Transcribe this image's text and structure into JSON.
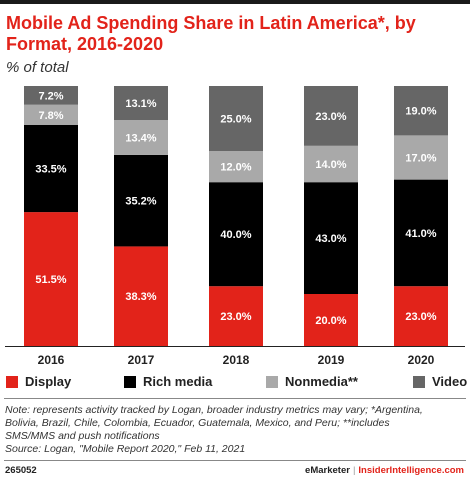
{
  "header": {
    "title": "Mobile Ad Spending Share in Latin America*, by Format, 2016-2020",
    "subtitle": "% of total"
  },
  "chart_data": {
    "type": "bar",
    "stacked": true,
    "categories": [
      "2016",
      "2017",
      "2018",
      "2019",
      "2020"
    ],
    "series": [
      {
        "name": "Display",
        "color": "#e2231a",
        "values": [
          51.5,
          38.3,
          23.0,
          20.0,
          23.0
        ],
        "labels": [
          "51.5%",
          "38.3%",
          "23.0%",
          "20.0%",
          "23.0%"
        ]
      },
      {
        "name": "Rich media",
        "color": "#000000",
        "values": [
          33.5,
          35.2,
          40.0,
          43.0,
          41.0
        ],
        "labels": [
          "33.5%",
          "35.2%",
          "40.0%",
          "43.0%",
          "41.0%"
        ]
      },
      {
        "name": "Nonmedia**",
        "color": "#a9a9a9",
        "values": [
          7.8,
          13.4,
          12.0,
          14.0,
          17.0
        ],
        "labels": [
          "7.8%",
          "13.4%",
          "12.0%",
          "14.0%",
          "17.0%"
        ]
      },
      {
        "name": "Video",
        "color": "#666666",
        "values": [
          7.2,
          13.1,
          25.0,
          23.0,
          19.0
        ],
        "labels": [
          "7.2%",
          "13.1%",
          "25.0%",
          "23.0%",
          "19.0%"
        ]
      }
    ],
    "ylim": [
      0,
      100
    ],
    "legend_position": "bottom",
    "grid": false
  },
  "note": {
    "lines": [
      "Note: represents activity tracked by Logan, broader industry metrics may vary; *Argentina,",
      "Bolivia, Brazil, Chile, Colombia, Ecuador, Guatemala, Mexico, and Peru; **includes",
      "SMS/MMS and push notifications",
      "Source: Logan, \"Mobile Report 2020,\" Feb 11, 2021"
    ]
  },
  "footer": {
    "chart_id": "265052",
    "brand_left": "eMarketer",
    "separator": "|",
    "brand_right": "InsiderIntelligence.com"
  }
}
